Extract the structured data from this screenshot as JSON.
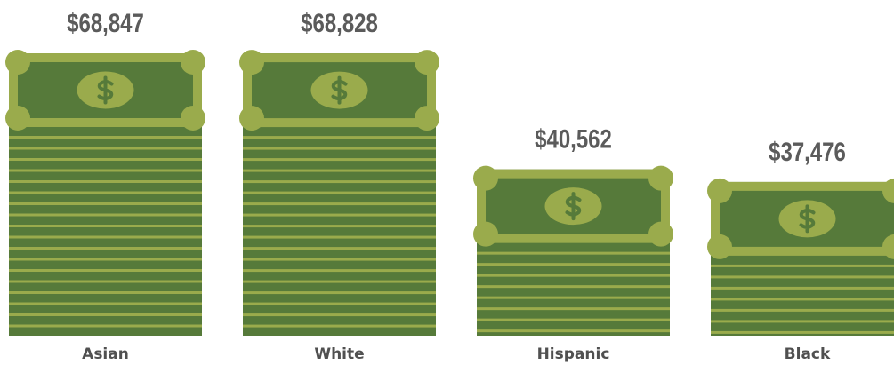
{
  "chart_data": {
    "type": "bar",
    "categories": [
      "Asian",
      "White",
      "Hispanic",
      "Black"
    ],
    "values": [
      68847,
      68828,
      40562,
      37476
    ],
    "value_labels": [
      "$68,847",
      "$68,828",
      "$40,562",
      "$37,476"
    ],
    "color": "#567a3a"
  }
}
